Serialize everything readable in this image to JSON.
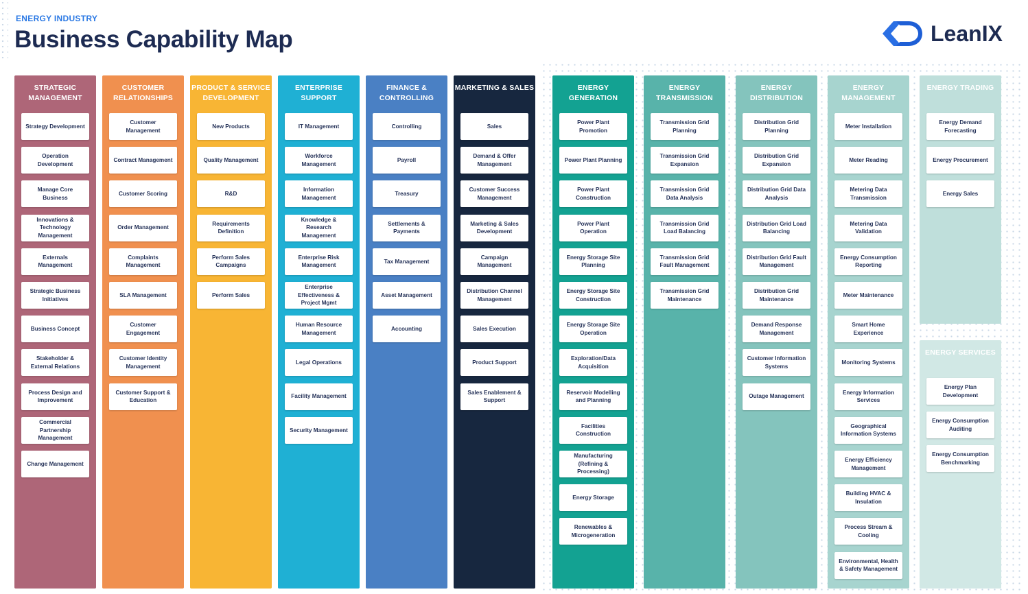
{
  "header": {
    "kicker": "ENERGY INDUSTRY",
    "title": "Business Capability Map",
    "logo_text": "LeanIX",
    "logo_icon": "leanix-logo-icon"
  },
  "colors": {
    "strategic": "#ae6678",
    "customer": "#f0904f",
    "product": "#f8b534",
    "enterprise": "#1fb0d4",
    "finance": "#4a80c4",
    "marketing": "#17273f",
    "generation": "#13a292",
    "transmission": "#58b3aa",
    "distribution": "#84c4bd",
    "management": "#a7d4cf",
    "trading": "#bfdfdb",
    "services": "#d1e8e5"
  },
  "columns": [
    {
      "title": "STRATEGIC MANAGEMENT",
      "items": [
        "Strategy Development",
        "Operation Development",
        "Manage Core Business",
        "Innovations & Technology Management",
        "Externals Management",
        "Strategic Business Initiatives",
        "Business Concept",
        "Stakeholder & External Relations",
        "Process Design and Improvement",
        "Commercial Partnership Management",
        "Change Management"
      ]
    },
    {
      "title": "CUSTOMER RELATIONSHIPS",
      "items": [
        "Customer Management",
        "Contract Management",
        "Customer Scoring",
        "Order Management",
        "Complaints Management",
        "SLA Management",
        "Customer Engagement",
        "Customer Identity Management",
        "Customer Support & Education"
      ]
    },
    {
      "title": "PRODUCT & SERVICE DEVELOPMENT",
      "items": [
        "New Products",
        "Quality Management",
        "R&D",
        "Requirements Definition",
        "Perform Sales Campaigns",
        "Perform Sales"
      ]
    },
    {
      "title": "ENTERPRISE SUPPORT",
      "items": [
        "IT Management",
        "Workforce Management",
        "Information Management",
        "Knowledge & Research Management",
        "Enterprise Risk Management",
        "Enterprise Effectiveness & Project Mgmt",
        "Human Resource Management",
        "Legal Operations",
        "Facility Management",
        "Security Management"
      ]
    },
    {
      "title": "FINANCE & CONTROLLING",
      "items": [
        "Controlling",
        "Payroll",
        "Treasury",
        "Settlements & Payments",
        "Tax Management",
        "Asset Management",
        "Accounting"
      ]
    },
    {
      "title": "MARKETING & SALES",
      "items": [
        "Sales",
        "Demand & Offer Management",
        "Customer Success Management",
        "Marketing & Sales Development",
        "Campaign Management",
        "Distribution Channel Management",
        "Sales Execution",
        "Product Support",
        "Sales Enablement & Support"
      ]
    },
    {
      "title": "ENERGY GENERATION",
      "items": [
        "Power Plant Promotion",
        "Power Plant Planning",
        "Power Plant Construction",
        "Power Plant Operation",
        "Energy Storage Site Planning",
        "Energy Storage Site Construction",
        "Energy Storage Site Operation",
        "Exploration/Data Acquisition",
        "Reservoir Modelling and Planning",
        "Facilities Construction",
        "Manufacturing (Refining & Processing)",
        "Energy Storage",
        "Renewables & Microgeneration"
      ]
    },
    {
      "title": "ENERGY TRANSMISSION",
      "items": [
        "Transmission Grid Planning",
        "Transmission Grid Expansion",
        "Transmission Grid Data Analysis",
        "Transmission Grid Load Balancing",
        "Transmission Grid Fault Management",
        "Transmission Grid Maintenance"
      ]
    },
    {
      "title": "ENERGY DISTRIBUTION",
      "items": [
        "Distribution Grid Planning",
        "Distribution Grid Expansion",
        "Distribution Grid Data Analysis",
        "Distribution Grid Load Balancing",
        "Distribution Grid Fault Management",
        "Distribution Grid Maintenance",
        "Demand Response Management",
        "Customer Information Systems",
        "Outage Management"
      ]
    },
    {
      "title": "ENERGY MANAGEMENT",
      "items": [
        "Meter Installation",
        "Meter Reading",
        "Metering Data Transmission",
        "Metering Data Validation",
        "Energy Consumption Reporting",
        "Meter Maintenance",
        "Smart Home Experience",
        "Monitoring Systems",
        "Energy Information Services",
        "Geographical Information Systems",
        "Energy Efficiency Management",
        "Building HVAC & Insulation",
        "Process Stream & Cooling",
        "Environmental, Health & Safety Management"
      ]
    },
    {
      "title": "ENERGY TRADING",
      "items": [
        "Energy Demand Forecasting",
        "Energy Procurement",
        "Energy Sales"
      ]
    },
    {
      "title": "ENERGY SERVICES",
      "items": [
        "Energy Plan Development",
        "Energy Consumption Auditing",
        "Energy Consumption Benchmarking"
      ]
    }
  ]
}
